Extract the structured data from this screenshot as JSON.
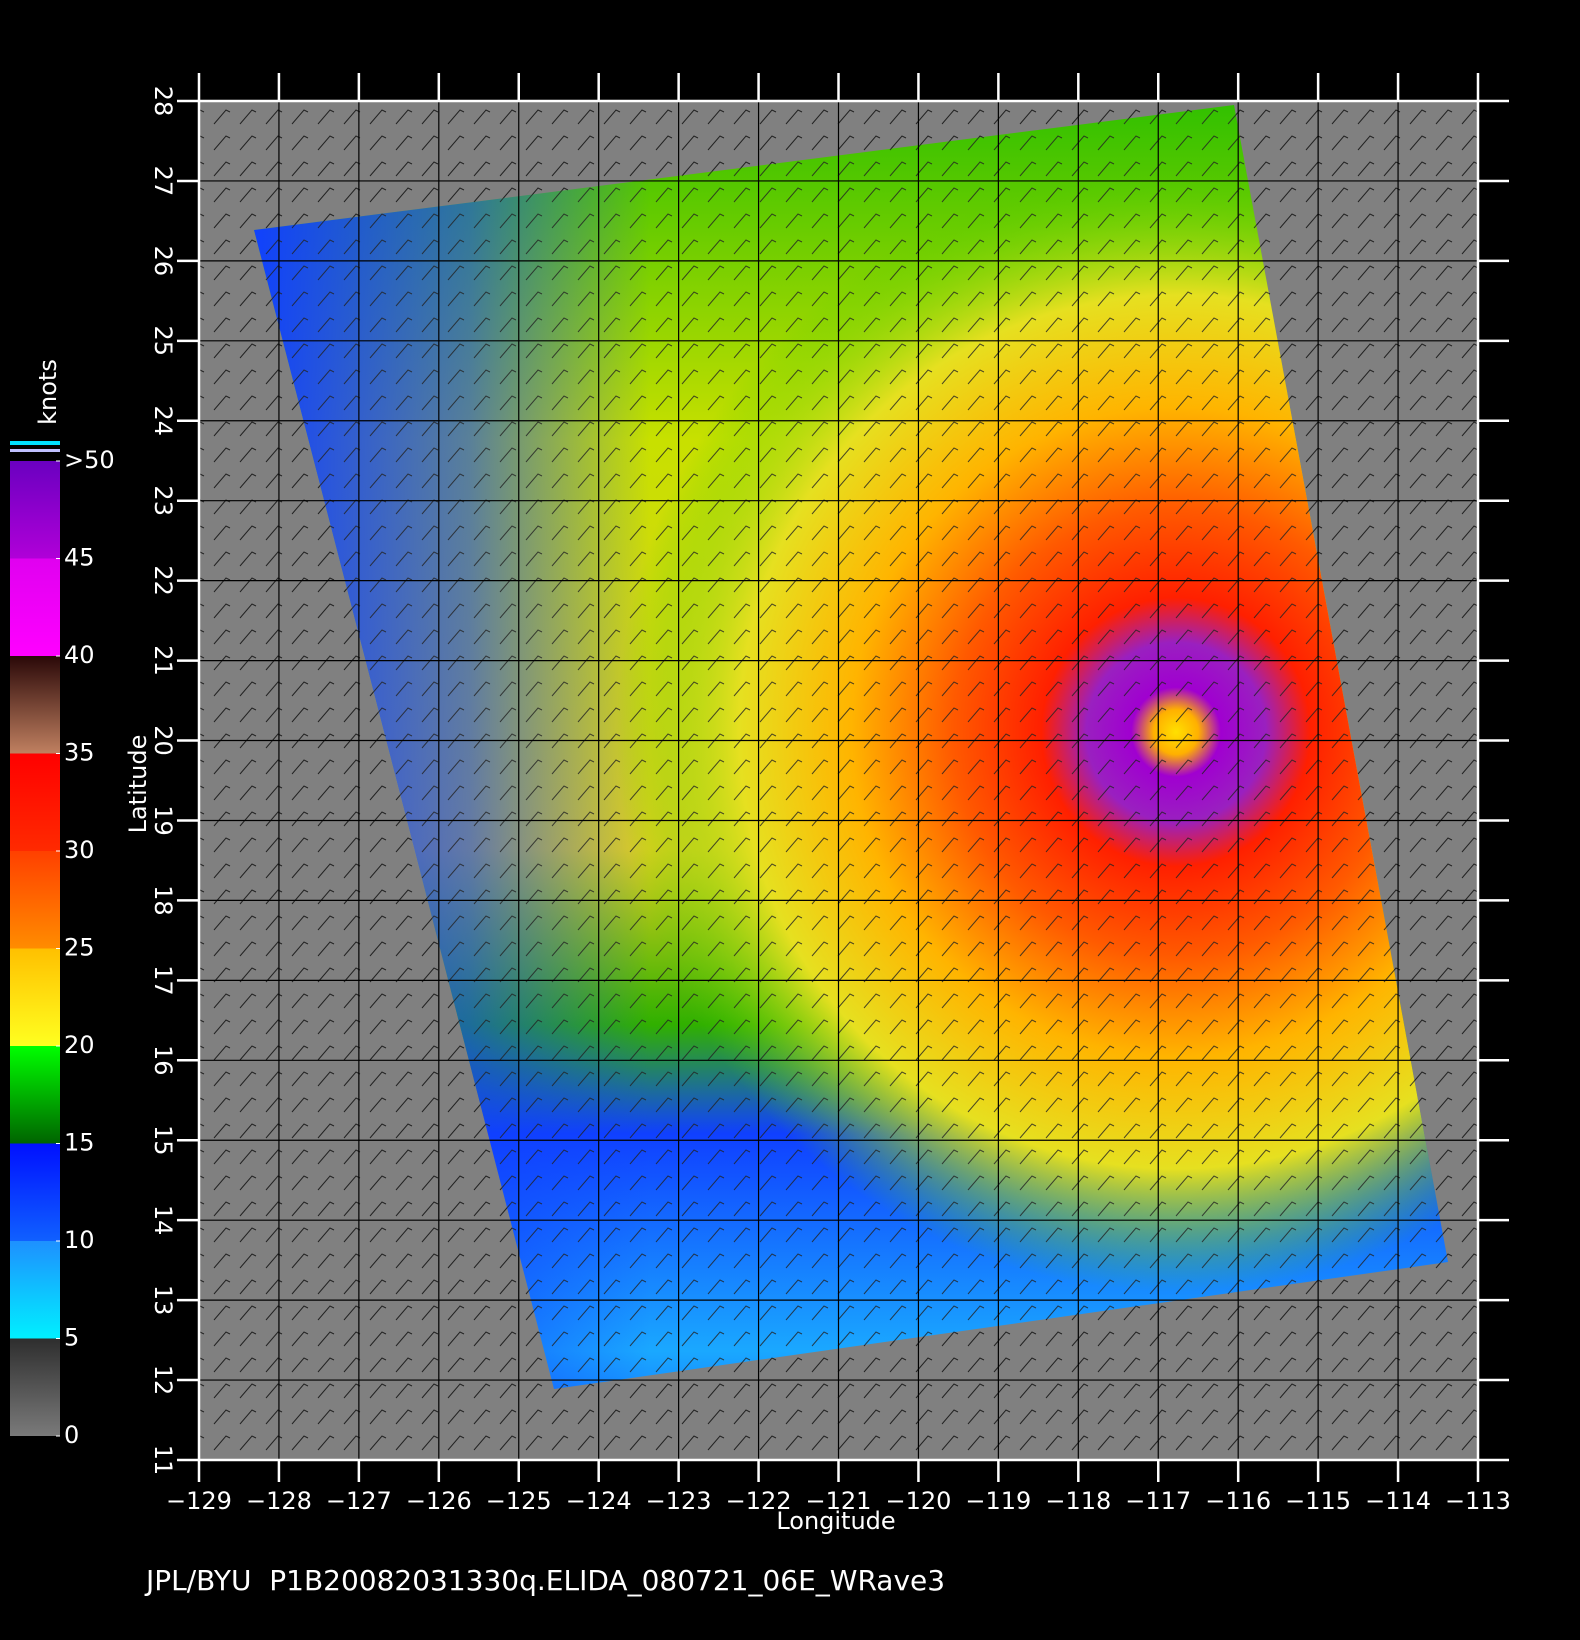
{
  "map": {
    "xlabel": "Longitude",
    "ylabel": "Latitude",
    "xlim": [
      -129,
      -113
    ],
    "ylim": [
      11,
      28
    ],
    "xticks": [
      -129,
      -128,
      -127,
      -126,
      -125,
      -124,
      -123,
      -122,
      -121,
      -120,
      -119,
      -118,
      -117,
      -116,
      -115,
      -114,
      -113
    ],
    "yticks": [
      11,
      12,
      13,
      14,
      15,
      16,
      17,
      18,
      19,
      20,
      21,
      22,
      23,
      24,
      25,
      26,
      27,
      28
    ]
  },
  "colorbar": {
    "label": "knots",
    "lim": [
      0,
      50
    ],
    "ticks": [
      0,
      5,
      10,
      15,
      20,
      25,
      30,
      35,
      40,
      45,
      {
        "value": 50,
        "label": ">50"
      }
    ],
    "colors": [
      [
        "#7a7a7a",
        "#2e2e2e"
      ],
      [
        "#00f0ff",
        "#1e90ff"
      ],
      [
        "#1060ff",
        "#0010ff"
      ],
      [
        "#006400",
        "#00ff00"
      ],
      [
        "#ffff20",
        "#ffc000"
      ],
      [
        "#ff8c00",
        "#ff4000"
      ],
      [
        "#ff2a00",
        "#ff0000"
      ],
      [
        "#c08060",
        "#2a0808"
      ],
      [
        "#ff00ff",
        "#e000f0"
      ],
      [
        "#b000d8",
        "#6a00c0"
      ]
    ]
  },
  "footer": "JPL/BYU  P1B20082031330q.ELIDA_080721_06E_WRave3"
}
